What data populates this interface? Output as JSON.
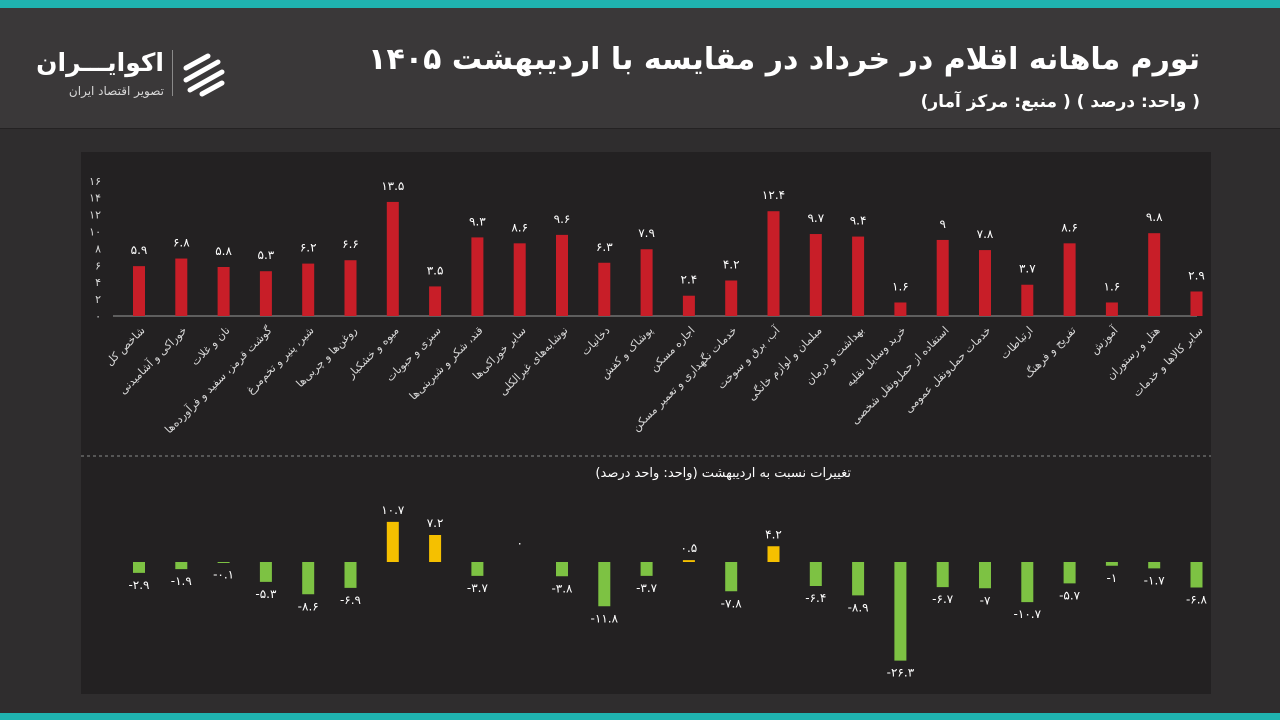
{
  "header": {
    "title": "تورم ماهانه اقلام در خرداد در مقایسه با اردیبهشت ۱۴۰۵",
    "subtitle": "( واحد: درصد ) ( منبع: مرکز آمار)"
  },
  "brand": {
    "name": "اکوایـــران",
    "tagline": "تصویر اقتصاد ایران"
  },
  "colors": {
    "red_bar": "#c81e28",
    "yellow_bar": "#f5c000",
    "green_bar": "#7dc243",
    "accent": "#1fb3b0"
  },
  "chart_data": [
    {
      "type": "bar",
      "categories": [
        "شاخص کل",
        "خوراکی و آشامیدنی",
        "نان و غلات",
        "گوشت قرمز، سفید و فرآورده‌ها",
        "شیر، پنیر و تخم‌مرغ",
        "روغن‌ها و چربی‌ها",
        "میوه و خشکبار",
        "سبزی و حبوبات",
        "قند، شکر و شیرینی‌ها",
        "سایر خوراکی‌ها",
        "نوشابه‌های غیرالکلی",
        "دخانیات",
        "پوشاک و کفش",
        "اجاره مسکن",
        "خدمات نگهداری و تعمیر مسکن",
        "آب، برق و سوخت",
        "مبلمان و لوازم خانگی",
        "بهداشت و درمان",
        "خرید وسایل نقلیه",
        "استفاده از حمل‌ونقل شخصی",
        "خدمات حمل‌ونقل عمومی",
        "ارتباطات",
        "تفریح و فرهنگ",
        "آموزش",
        "هتل و رستوران",
        "سایر کالاها و خدمات"
      ],
      "values": [
        5.9,
        6.8,
        5.8,
        5.3,
        6.2,
        6.6,
        13.5,
        3.5,
        9.3,
        8.6,
        9.6,
        6.3,
        7.9,
        2.4,
        4.2,
        12.4,
        9.7,
        9.4,
        1.6,
        9,
        7.8,
        3.7,
        8.6,
        1.6,
        9.8,
        2.9
      ],
      "value_labels": [
        "۵.۹",
        "۶.۸",
        "۵.۸",
        "۵.۳",
        "۶.۲",
        "۶.۶",
        "۱۳.۵",
        "۳.۵",
        "۹.۳",
        "۸.۶",
        "۹.۶",
        "۶.۳",
        "۷.۹",
        "۲.۴",
        "۴.۲",
        "۱۲.۴",
        "۹.۷",
        "۹.۴",
        "۱.۶",
        "۹",
        "۷.۸",
        "۳.۷",
        "۸.۶",
        "۱.۶",
        "۹.۸",
        "۲.۹"
      ],
      "yticks": [
        0,
        2,
        4,
        6,
        8,
        10,
        12,
        14,
        16
      ],
      "ytick_labels": [
        "۰",
        "۲",
        "۴",
        "۶",
        "۸",
        "۱۰",
        "۱۲",
        "۱۴",
        "۱۶"
      ],
      "ylim": [
        0,
        16
      ]
    },
    {
      "type": "bar",
      "title": "تغییرات نسبت به اردیبهشت (واحد: واحد درصد)",
      "values": [
        -2.9,
        -1.9,
        -0.1,
        -5.3,
        -8.6,
        -6.9,
        10.7,
        7.2,
        -3.7,
        0,
        -3.8,
        -11.8,
        -3.7,
        0.5,
        -7.8,
        4.2,
        -6.4,
        -8.9,
        -26.3,
        -6.7,
        -7,
        -10.7,
        -5.7,
        -1,
        -1.7,
        -6.8
      ],
      "value_labels": [
        "-۲.۹",
        "-۱.۹",
        "-۰.۱",
        "-۵.۳",
        "-۸.۶",
        "-۶.۹",
        "۱۰.۷",
        "۷.۲",
        "-۳.۷",
        "۰",
        "-۳.۸",
        "-۱۱.۸",
        "-۳.۷",
        "۰.۵",
        "-۷.۸",
        "۴.۲",
        "-۶.۴",
        "-۸.۹",
        "-۲۶.۳",
        "-۶.۷",
        "-۷",
        "-۱۰.۷",
        "-۵.۷",
        "-۱",
        "-۱.۷",
        "-۶.۸"
      ]
    }
  ]
}
